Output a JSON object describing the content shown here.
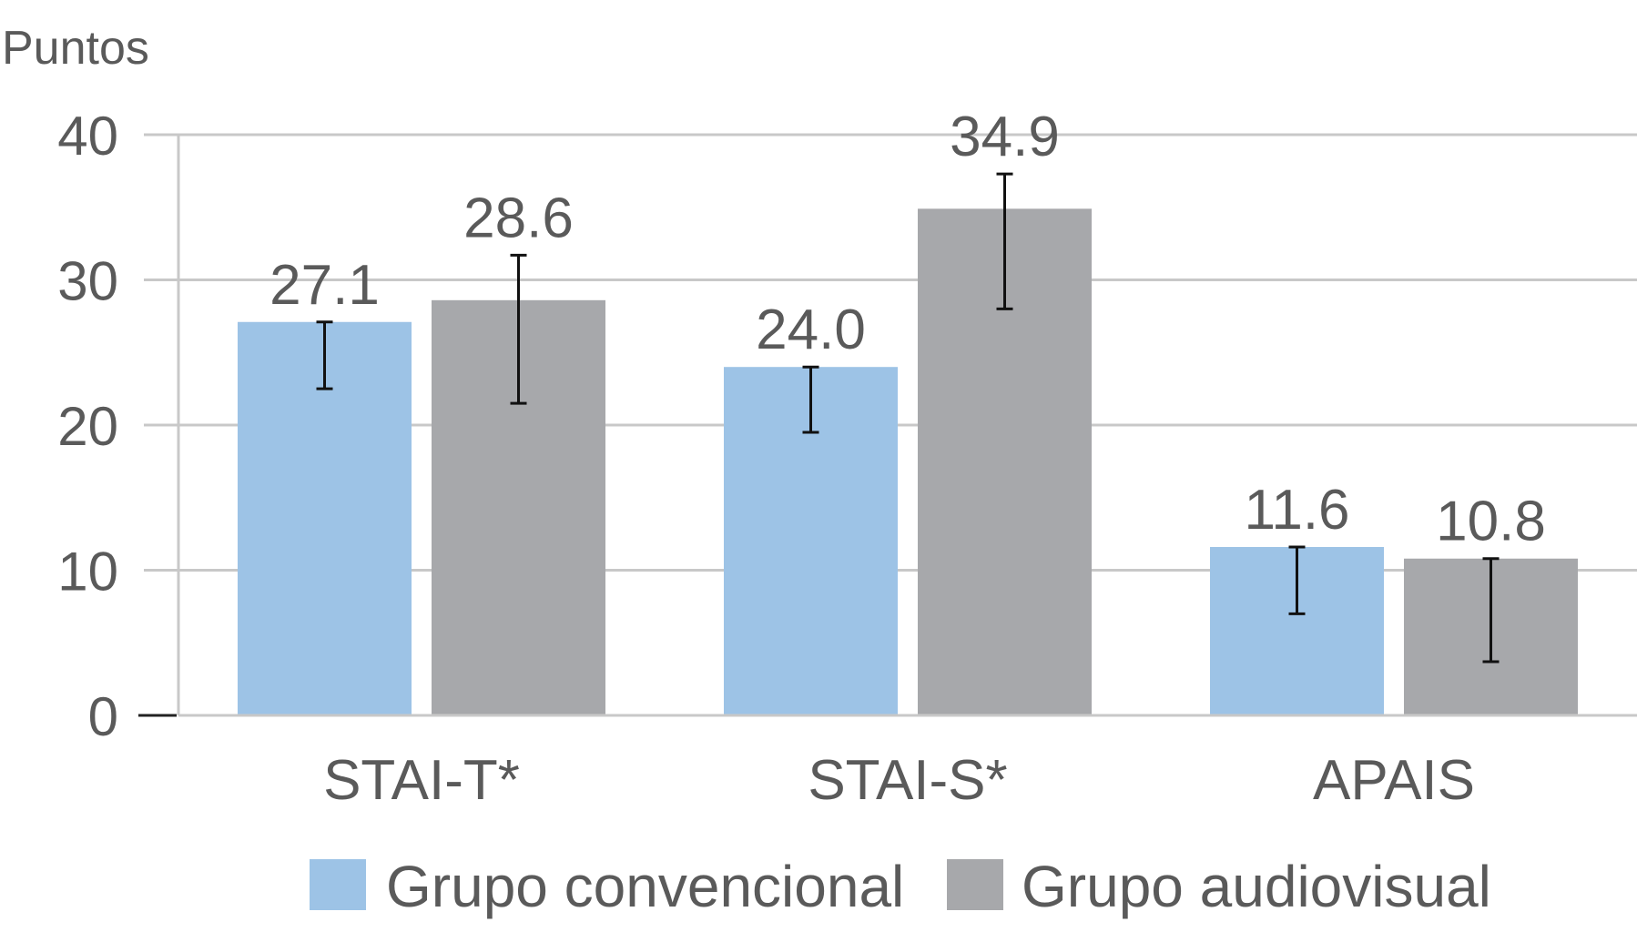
{
  "chart_data": {
    "type": "bar",
    "ylabel": "Puntos",
    "xlabel": "",
    "ylim": [
      0,
      40
    ],
    "yticks": [
      0,
      10,
      20,
      30,
      40
    ],
    "grid": true,
    "legend_position": "bottom",
    "categories": [
      "STAI-T*",
      "STAI-S*",
      "APAIS"
    ],
    "series": [
      {
        "name": "Grupo convencional",
        "color": "#9dc3e6",
        "values": [
          27.1,
          24.0,
          11.6
        ],
        "labels": [
          "27.1",
          "24.0",
          "11.6"
        ],
        "error_low": [
          22.5,
          19.5,
          7.0
        ],
        "error_high": [
          27.1,
          24.0,
          11.6
        ]
      },
      {
        "name": "Grupo audiovisual",
        "color": "#a7a8ab",
        "values": [
          28.6,
          34.9,
          10.8
        ],
        "labels": [
          "28.6",
          "34.9",
          "10.8"
        ],
        "error_low": [
          21.5,
          28.0,
          3.7
        ],
        "error_high": [
          31.7,
          37.3,
          10.8
        ]
      }
    ]
  }
}
